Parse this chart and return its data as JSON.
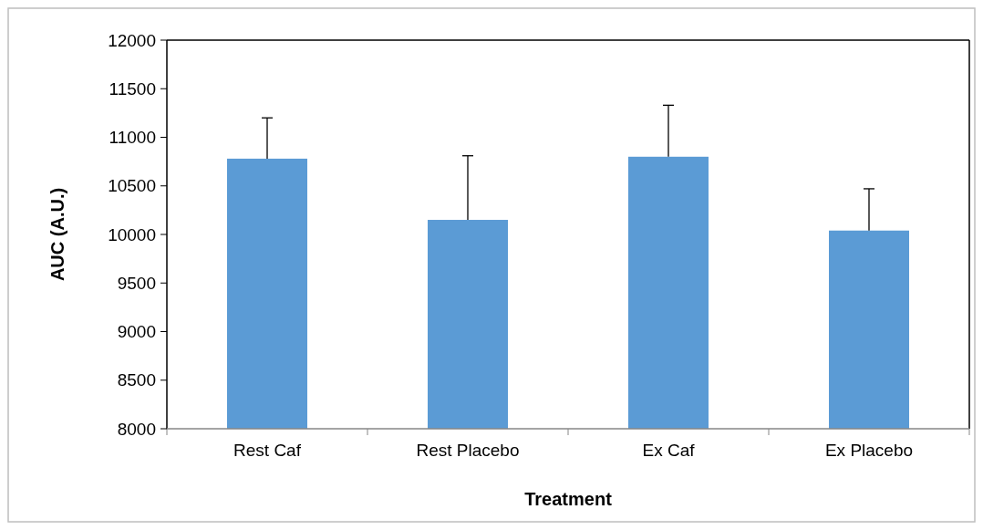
{
  "chart_data": {
    "type": "bar",
    "xlabel": "Treatment",
    "ylabel": "AUC (A.U.)",
    "categories": [
      "Rest Caf",
      "Rest Placebo",
      "Ex Caf",
      "Ex Placebo"
    ],
    "values": [
      10780,
      10150,
      10800,
      10040
    ],
    "errors": [
      [
        10780,
        11200
      ],
      [
        10150,
        10810
      ],
      [
        10800,
        11330
      ],
      [
        10040,
        10470
      ]
    ],
    "color": "#5b9bd5",
    "ylim": [
      8000,
      12000
    ],
    "yticks": [
      8000,
      8500,
      9000,
      9500,
      10000,
      10500,
      11000,
      11500,
      12000
    ],
    "grid": false
  }
}
